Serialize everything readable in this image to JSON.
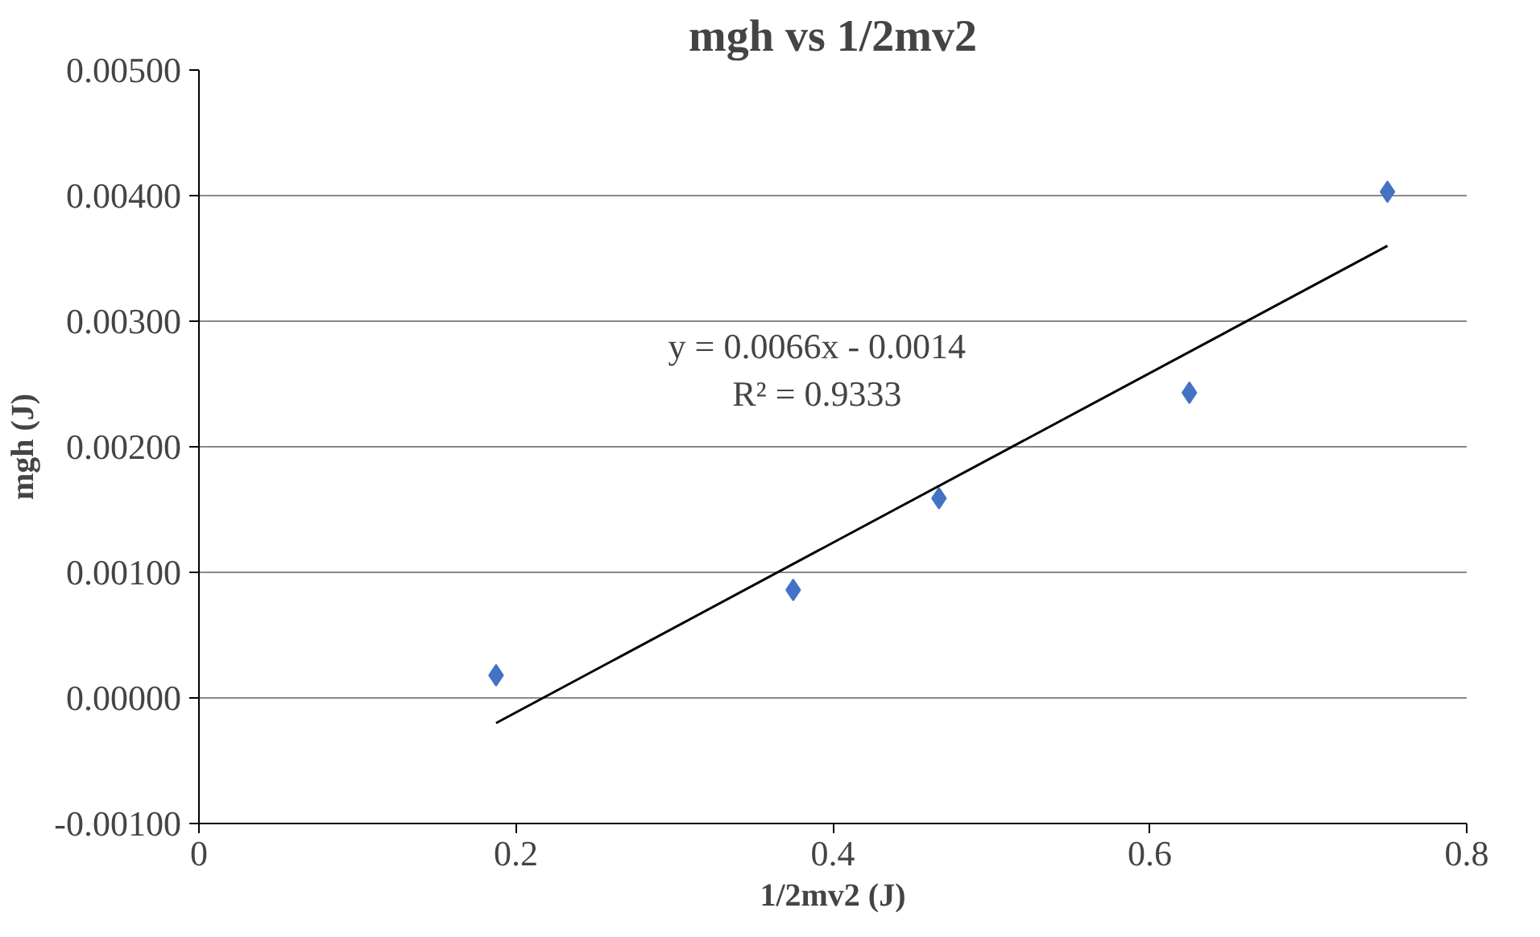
{
  "chart_data": {
    "type": "scatter",
    "title": "mgh vs 1/2mv2",
    "xlabel": "1/2mv2 (J)",
    "ylabel": "mgh (J)",
    "xlim": [
      0,
      0.8
    ],
    "xticks": [
      0,
      0.2,
      0.4,
      0.6,
      0.8
    ],
    "ylim": [
      -0.001,
      0.005
    ],
    "yticks": [
      {
        "value": -0.001,
        "label": "-0.00100"
      },
      {
        "value": 0,
        "label": "0.00000"
      },
      {
        "value": 0.001,
        "label": "0.00100"
      },
      {
        "value": 0.002,
        "label": "0.00200"
      },
      {
        "value": 0.003,
        "label": "0.00300"
      },
      {
        "value": 0.004,
        "label": "0.00400"
      },
      {
        "value": 0.005,
        "label": "0.00500"
      }
    ],
    "grid": "y",
    "x": [
      0.1875,
      0.375,
      0.467,
      0.625,
      0.75
    ],
    "series": [
      {
        "marker": "diamond",
        "color": "#4472c4",
        "values": [
          0.00018,
          0.00086,
          0.00159,
          0.00243,
          0.00403
        ]
      },
      {
        "type": "line",
        "color": "#000000",
        "x": [
          0.1875,
          0.75
        ],
        "values": [
          -0.0002,
          0.0036
        ]
      }
    ],
    "annotations": [
      "y = 0.0066x - 0.0014",
      "R² = 0.9333"
    ]
  }
}
